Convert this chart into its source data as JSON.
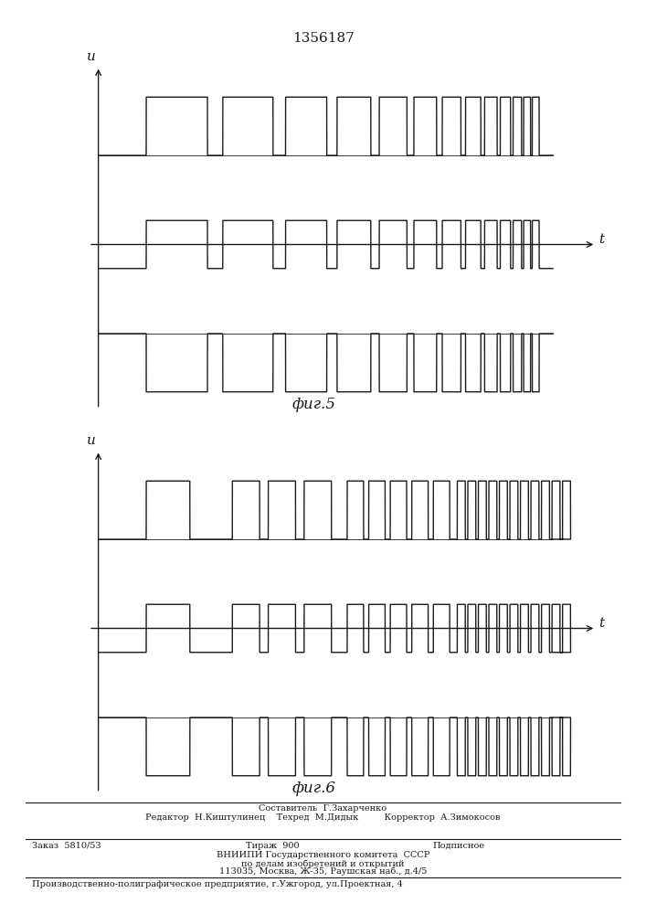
{
  "title": "1356187",
  "fig5_label": "фиг.5",
  "fig6_label": "фиг.6",
  "u_label": "u",
  "t_label": "t",
  "line_color": "#1a1a1a",
  "footer_lines": [
    "Составитель  Г.Захарченко",
    "Редактор  Н.Киштулинец    Техред  М.Дидык         Корректор  А.Зимокосов",
    "Заказ  5810/53",
    "Тираж  900",
    "Подписное",
    "ВНИИПИ Государственного комитета  СССР",
    "по делам изобретений и открытий",
    "113035, Москва, Ж-35, Раушская наб., д.4/5",
    "Производственно-полиграфическое предприятие, г.Ужгород, ул.Проектная, 4"
  ]
}
